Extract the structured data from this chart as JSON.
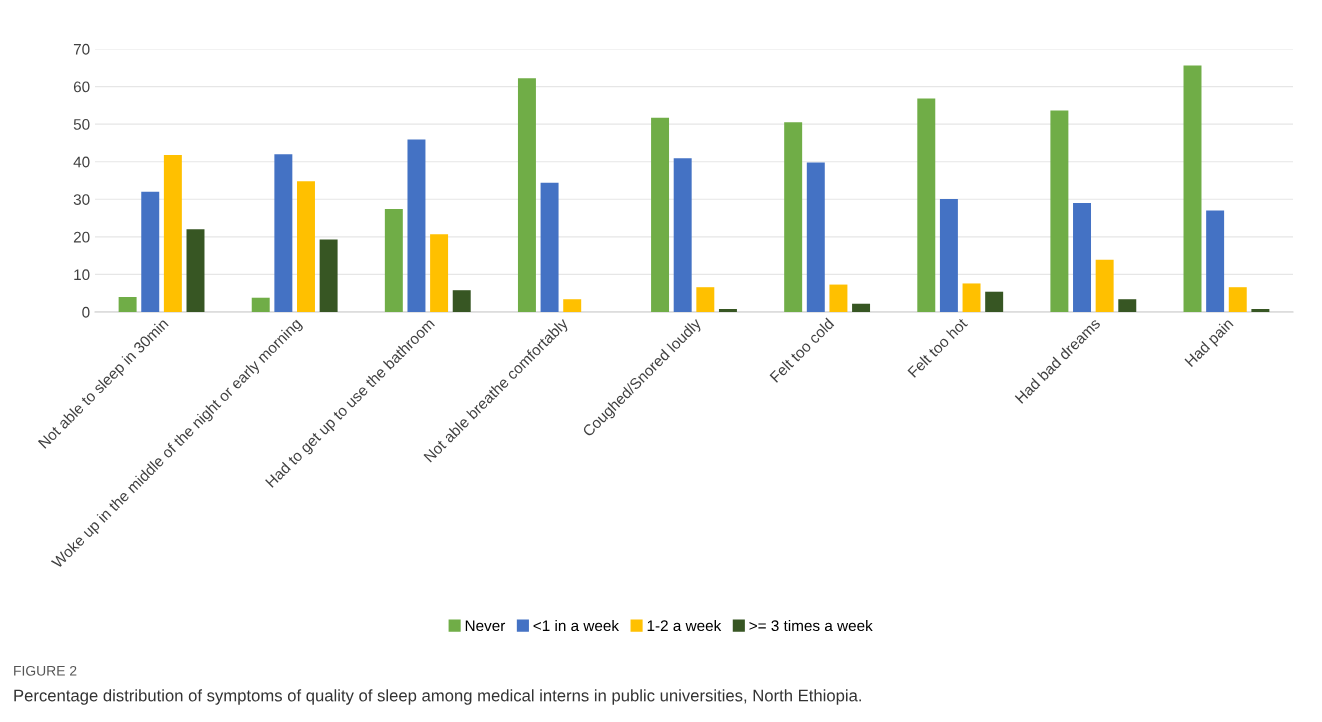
{
  "chart_data": {
    "type": "bar",
    "categories": [
      "Not able to sleep in 30min",
      "Woke up in the middle of the night or early morning",
      "Had to get up to use the bathroom",
      "Not able breathe comfortably",
      "Coughed/Snored loudly",
      "Felt too cold",
      "Felt too hot",
      "Had bad dreams",
      "Had pain"
    ],
    "series": [
      {
        "name": "Never",
        "color": "#70ad47",
        "values": [
          4.0,
          3.8,
          27.4,
          62.2,
          51.7,
          50.5,
          56.8,
          53.6,
          65.6
        ]
      },
      {
        "name": "<1 in a week",
        "color": "#4472c4",
        "values": [
          32.0,
          42.0,
          45.9,
          34.4,
          40.9,
          39.8,
          30.1,
          29.0,
          27.0
        ]
      },
      {
        "name": "1-2 a week",
        "color": "#ffc000",
        "values": [
          41.8,
          34.8,
          20.7,
          3.4,
          6.6,
          7.3,
          7.6,
          13.9,
          6.6
        ]
      },
      {
        "name": ">= 3 times a week",
        "color": "#375623",
        "values": [
          22.0,
          19.3,
          5.8,
          null,
          0.8,
          2.2,
          5.4,
          3.4,
          0.8
        ]
      }
    ],
    "ylim": [
      0,
      70
    ],
    "yticks": [
      0,
      10,
      20,
      30,
      40,
      50,
      60,
      70
    ],
    "grid": "y",
    "legend": "bottom",
    "annotations": [
      "FIGURE 2",
      "Percentage distribution of symptoms of quality of sleep among medical interns in public universities, North Ethiopia."
    ]
  }
}
